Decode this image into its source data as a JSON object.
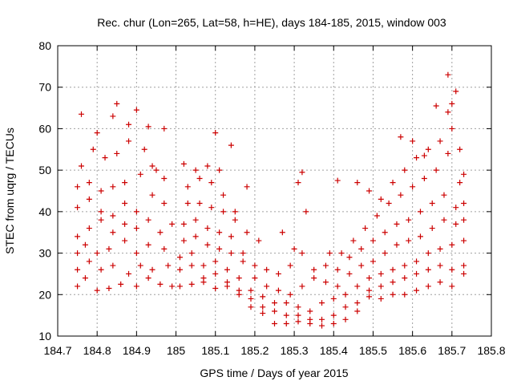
{
  "chart_data": {
    "type": "scatter",
    "title": "Rec. chur (Lon=265, Lat=58, h=HE), days 184-185, 2015, window 003",
    "xlabel": "GPS time / Days of year 2015",
    "ylabel": "STEC from uqrg / TECUs",
    "xlim": [
      184.7,
      185.8
    ],
    "ylim": [
      10,
      80
    ],
    "x_ticks": [
      "184.7",
      "184.8",
      "184.9",
      "185",
      "185.1",
      "185.2",
      "185.3",
      "185.4",
      "185.5",
      "185.6",
      "185.7",
      "185.8"
    ],
    "y_ticks": [
      "10",
      "20",
      "30",
      "40",
      "50",
      "60",
      "70",
      "80"
    ],
    "grid": true,
    "marker": "+",
    "color": "#cc0000",
    "series": [
      {
        "arcs": [
          [
            [
              184.75,
              22
            ],
            [
              184.77,
              24
            ],
            [
              184.8,
              21
            ],
            [
              184.83,
              21.5
            ],
            [
              184.86,
              22.5
            ],
            [
              184.9,
              22
            ],
            [
              184.93,
              24
            ],
            [
              184.96,
              22.5
            ],
            [
              184.99,
              22
            ]
          ],
          [
            [
              184.75,
              26
            ],
            [
              184.78,
              28
            ],
            [
              184.81,
              26
            ],
            [
              184.84,
              27
            ],
            [
              184.88,
              25
            ],
            [
              184.91,
              27
            ],
            [
              184.94,
              26
            ],
            [
              184.98,
              27
            ]
          ],
          [
            [
              184.75,
              30
            ],
            [
              184.77,
              32
            ],
            [
              184.8,
              30
            ],
            [
              184.83,
              31
            ],
            [
              184.87,
              33
            ],
            [
              184.9,
              30
            ],
            [
              184.93,
              32
            ],
            [
              184.97,
              31
            ]
          ],
          [
            [
              184.75,
              34
            ],
            [
              184.78,
              36
            ],
            [
              184.81,
              38
            ],
            [
              184.84,
              35
            ],
            [
              184.87,
              37
            ],
            [
              184.9,
              36
            ],
            [
              184.93,
              38
            ],
            [
              184.96,
              35
            ],
            [
              184.99,
              37
            ]
          ],
          [
            [
              184.75,
              41
            ],
            [
              184.78,
              43
            ],
            [
              184.81,
              40
            ],
            [
              184.84,
              39
            ],
            [
              184.87,
              42
            ],
            [
              184.9,
              40
            ],
            [
              184.94,
              44
            ],
            [
              184.97,
              42
            ]
          ],
          [
            [
              184.75,
              46
            ],
            [
              184.78,
              47
            ],
            [
              184.81,
              45
            ],
            [
              184.84,
              46
            ],
            [
              184.87,
              47
            ],
            [
              184.91,
              49
            ],
            [
              184.94,
              51
            ],
            [
              184.97,
              48
            ]
          ],
          [
            [
              184.76,
              51
            ],
            [
              184.79,
              55
            ],
            [
              184.82,
              53
            ],
            [
              184.85,
              54
            ],
            [
              184.88,
              57
            ],
            [
              184.92,
              55
            ],
            [
              184.95,
              50
            ]
          ],
          [
            [
              184.76,
              63.5
            ],
            [
              184.8,
              59
            ],
            [
              184.84,
              63
            ],
            [
              184.85,
              66
            ],
            [
              184.88,
              61
            ],
            [
              184.9,
              64.5
            ],
            [
              184.93,
              60.5
            ],
            [
              184.97,
              60
            ]
          ]
        ]
      },
      {
        "arcs": [
          [
            [
              185.01,
              22
            ],
            [
              185.04,
              22.5
            ],
            [
              185.07,
              23
            ],
            [
              185.1,
              21.5
            ],
            [
              185.13,
              22
            ],
            [
              185.16,
              20
            ],
            [
              185.19,
              17
            ],
            [
              185.22,
              15.5
            ],
            [
              185.25,
              13
            ],
            [
              185.28,
              13
            ],
            [
              185.31,
              13.5
            ],
            [
              185.34,
              13
            ],
            [
              185.37,
              12.5
            ],
            [
              185.4,
              13
            ],
            [
              185.43,
              14
            ],
            [
              185.46,
              16
            ],
            [
              185.49,
              19.5
            ],
            [
              185.52,
              19
            ],
            [
              185.55,
              20
            ],
            [
              185.58,
              20
            ],
            [
              185.61,
              21
            ],
            [
              185.64,
              22
            ],
            [
              185.67,
              23
            ],
            [
              185.7,
              22
            ],
            [
              185.73,
              25
            ]
          ],
          [
            [
              185.01,
              26
            ],
            [
              185.04,
              27
            ],
            [
              185.07,
              24
            ],
            [
              185.1,
              25
            ],
            [
              185.13,
              23
            ],
            [
              185.16,
              21
            ],
            [
              185.19,
              19
            ],
            [
              185.22,
              17
            ],
            [
              185.25,
              16
            ],
            [
              185.28,
              15
            ],
            [
              185.31,
              15
            ],
            [
              185.34,
              14
            ],
            [
              185.37,
              14
            ],
            [
              185.4,
              15
            ],
            [
              185.43,
              17
            ],
            [
              185.46,
              18
            ],
            [
              185.49,
              21
            ],
            [
              185.52,
              22
            ],
            [
              185.55,
              23
            ],
            [
              185.58,
              24
            ],
            [
              185.61,
              25
            ],
            [
              185.64,
              26
            ],
            [
              185.67,
              27
            ],
            [
              185.7,
              26
            ],
            [
              185.73,
              27
            ]
          ],
          [
            [
              185.01,
              29
            ],
            [
              185.04,
              30
            ],
            [
              185.07,
              27
            ],
            [
              185.1,
              28
            ],
            [
              185.13,
              26
            ],
            [
              185.16,
              24
            ],
            [
              185.19,
              21
            ],
            [
              185.22,
              19.5
            ],
            [
              185.25,
              18
            ],
            [
              185.28,
              18
            ],
            [
              185.31,
              17
            ],
            [
              185.34,
              16
            ],
            [
              185.37,
              18
            ],
            [
              185.4,
              19
            ],
            [
              185.43,
              20
            ],
            [
              185.46,
              22
            ],
            [
              185.49,
              24
            ],
            [
              185.52,
              25
            ],
            [
              185.55,
              26
            ],
            [
              185.58,
              27
            ],
            [
              185.61,
              28
            ],
            [
              185.64,
              30
            ],
            [
              185.67,
              31
            ],
            [
              185.7,
              32
            ],
            [
              185.73,
              33
            ]
          ],
          [
            [
              185.02,
              33
            ],
            [
              185.05,
              34
            ],
            [
              185.08,
              32
            ],
            [
              185.11,
              31
            ],
            [
              185.14,
              30
            ],
            [
              185.17,
              28
            ],
            [
              185.2,
              24
            ],
            [
              185.23,
              22
            ],
            [
              185.26,
              21
            ],
            [
              185.29,
              20
            ],
            [
              185.32,
              22
            ],
            [
              185.35,
              24
            ],
            [
              185.38,
              23
            ],
            [
              185.41,
              22
            ],
            [
              185.44,
              25
            ],
            [
              185.47,
              27
            ],
            [
              185.5,
              28
            ],
            [
              185.53,
              30
            ],
            [
              185.56,
              32
            ],
            [
              185.59,
              33
            ],
            [
              185.62,
              34
            ],
            [
              185.65,
              36
            ],
            [
              185.68,
              38
            ],
            [
              185.71,
              37
            ],
            [
              185.73,
              38
            ]
          ],
          [
            [
              185.02,
              37
            ],
            [
              185.05,
              38
            ],
            [
              185.08,
              36
            ],
            [
              185.11,
              35
            ],
            [
              185.14,
              34
            ],
            [
              185.17,
              30
            ],
            [
              185.2,
              27
            ],
            [
              185.23,
              26
            ],
            [
              185.26,
              25
            ],
            [
              185.29,
              27
            ],
            [
              185.32,
              30
            ],
            [
              185.35,
              26
            ],
            [
              185.38,
              27
            ],
            [
              185.41,
              26
            ],
            [
              185.44,
              29
            ],
            [
              185.47,
              31
            ],
            [
              185.5,
              33
            ],
            [
              185.53,
              35
            ],
            [
              185.56,
              37
            ],
            [
              185.59,
              38
            ],
            [
              185.62,
              40
            ],
            [
              185.65,
              42
            ],
            [
              185.68,
              44
            ],
            [
              185.71,
              41
            ],
            [
              185.73,
              42
            ]
          ],
          [
            [
              185.03,
              42
            ],
            [
              185.06,
              42
            ],
            [
              185.09,
              41
            ],
            [
              185.12,
              40
            ],
            [
              185.15,
              38
            ],
            [
              185.18,
              35
            ],
            [
              185.21,
              33
            ],
            [
              185.27,
              35
            ],
            [
              185.3,
              31
            ],
            [
              185.33,
              40
            ],
            [
              185.39,
              30
            ],
            [
              185.42,
              30
            ],
            [
              185.45,
              33
            ],
            [
              185.48,
              36
            ],
            [
              185.51,
              39
            ],
            [
              185.54,
              42
            ],
            [
              185.57,
              44
            ],
            [
              185.6,
              46
            ],
            [
              185.63,
              48
            ],
            [
              185.66,
              50
            ],
            [
              185.69,
              54
            ],
            [
              185.72,
              47
            ]
          ],
          [
            [
              185.03,
              46
            ],
            [
              185.06,
              48
            ],
            [
              185.09,
              47
            ],
            [
              185.12,
              44
            ],
            [
              185.15,
              40
            ],
            [
              185.18,
              46
            ],
            [
              185.31,
              47
            ],
            [
              185.32,
              49.5
            ],
            [
              185.41,
              47.5
            ],
            [
              185.46,
              47
            ],
            [
              185.49,
              45
            ],
            [
              185.52,
              43
            ],
            [
              185.55,
              47
            ],
            [
              185.58,
              50
            ],
            [
              185.61,
              53
            ],
            [
              185.64,
              55
            ],
            [
              185.67,
              57
            ],
            [
              185.7,
              60
            ],
            [
              185.73,
              49
            ]
          ],
          [
            [
              185.02,
              51.5
            ],
            [
              185.05,
              50
            ],
            [
              185.08,
              51
            ],
            [
              185.1,
              59
            ],
            [
              185.11,
              50
            ],
            [
              185.14,
              56
            ],
            [
              185.57,
              58
            ],
            [
              185.6,
              57
            ],
            [
              185.63,
              53.5
            ],
            [
              185.66,
              65.5
            ],
            [
              185.69,
              64
            ],
            [
              185.7,
              66
            ],
            [
              185.71,
              69
            ],
            [
              185.69,
              73
            ],
            [
              185.72,
              55
            ]
          ]
        ]
      }
    ]
  }
}
